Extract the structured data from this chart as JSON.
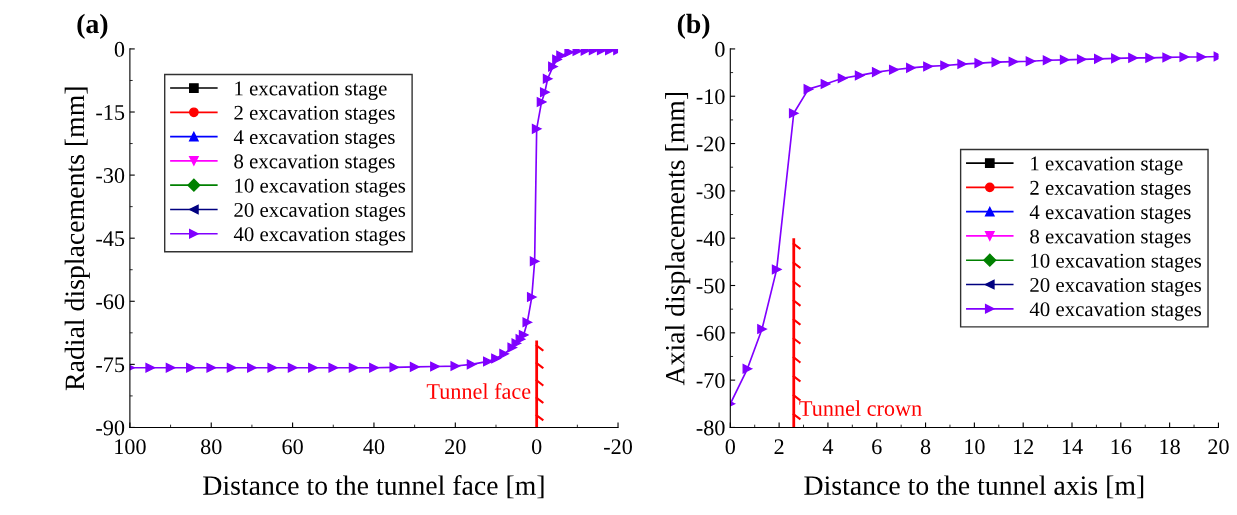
{
  "chart_data": [
    {
      "type": "line",
      "title": "(a)",
      "xlabel": "Distance to the tunnel face [m]",
      "ylabel": "Radial displacements [mm]",
      "x": [
        100,
        95,
        90,
        85,
        80,
        75,
        70,
        65,
        60,
        55,
        50,
        45,
        40,
        35,
        30,
        25,
        20,
        16,
        12,
        10,
        8,
        6,
        5,
        4,
        3.2,
        2.3,
        1.2,
        0.5,
        0,
        -1.2,
        -2,
        -2.7,
        -4,
        -5,
        -6,
        -8,
        -10,
        -12,
        -14,
        -16,
        -18,
        -20
      ],
      "xlim": [
        100,
        -20
      ],
      "xticks": [
        100,
        80,
        60,
        40,
        20,
        0,
        -20
      ],
      "ylim": [
        -90,
        0
      ],
      "yticks": [
        -90,
        -75,
        -60,
        -45,
        -30,
        -15,
        0
      ],
      "legend": "top left",
      "grid": false,
      "line_style": "solid",
      "ref_lines": [
        {
          "axis": "x",
          "value": 0,
          "label": "Tunnel face",
          "color": "#ff0000"
        }
      ],
      "series": [
        {
          "name": "1 excavation stage",
          "color": "#000000",
          "marker": "square",
          "values": [
            null,
            null,
            null,
            null,
            null,
            null,
            null,
            null,
            null,
            null,
            null,
            null,
            null,
            null,
            null,
            null,
            null,
            null,
            null,
            null,
            null,
            null,
            null,
            null,
            null,
            null,
            null,
            null,
            null,
            null,
            null,
            null,
            null,
            null,
            null,
            null,
            null,
            null,
            null,
            null,
            null,
            null
          ]
        },
        {
          "name": "2 excavation stages",
          "color": "#ff0000",
          "marker": "circle",
          "values": [
            null,
            null,
            null,
            null,
            null,
            null,
            null,
            null,
            null,
            null,
            null,
            null,
            null,
            null,
            null,
            null,
            null,
            null,
            null,
            null,
            null,
            null,
            null,
            null,
            null,
            null,
            null,
            null,
            null,
            null,
            null,
            null,
            null,
            null,
            null,
            null,
            null,
            null,
            null,
            null,
            null,
            null
          ]
        },
        {
          "name": "4 excavation stages",
          "color": "#0000ff",
          "marker": "triangle",
          "values": [
            null,
            null,
            null,
            null,
            null,
            null,
            null,
            null,
            null,
            null,
            null,
            null,
            null,
            null,
            null,
            null,
            null,
            null,
            null,
            null,
            null,
            null,
            null,
            null,
            null,
            null,
            null,
            null,
            null,
            null,
            null,
            null,
            null,
            null,
            null,
            null,
            null,
            null,
            null,
            null,
            null,
            null
          ]
        },
        {
          "name": "8 excavation stages",
          "color": "#ff00ff",
          "marker": "triangle_down",
          "values": [
            null,
            null,
            null,
            null,
            null,
            null,
            null,
            null,
            null,
            null,
            null,
            null,
            null,
            null,
            null,
            null,
            null,
            null,
            null,
            null,
            null,
            null,
            null,
            null,
            null,
            null,
            null,
            null,
            null,
            null,
            null,
            null,
            null,
            null,
            null,
            null,
            null,
            null,
            null,
            null,
            null,
            null
          ]
        },
        {
          "name": "10 excavation stages",
          "color": "#008000",
          "marker": "diamond",
          "values": [
            null,
            null,
            null,
            null,
            null,
            null,
            null,
            null,
            null,
            null,
            null,
            null,
            null,
            null,
            null,
            null,
            null,
            null,
            null,
            null,
            null,
            null,
            null,
            null,
            null,
            null,
            null,
            null,
            null,
            null,
            null,
            null,
            null,
            null,
            null,
            null,
            null,
            null,
            null,
            null,
            null,
            null
          ]
        },
        {
          "name": "20 excavation stages",
          "color": "#000080",
          "marker": "triangle_left",
          "values": [
            null,
            null,
            null,
            null,
            null,
            null,
            null,
            null,
            null,
            null,
            null,
            null,
            null,
            null,
            null,
            null,
            null,
            null,
            null,
            null,
            null,
            null,
            null,
            null,
            null,
            null,
            null,
            null,
            null,
            null,
            null,
            null,
            null,
            null,
            null,
            null,
            null,
            null,
            null,
            null,
            null,
            null
          ]
        },
        {
          "name": "40 excavation stages",
          "color": "#8000ff",
          "marker": "triangle_right",
          "values": [
            -75.8,
            -75.8,
            -75.8,
            -75.8,
            -75.8,
            -75.8,
            -75.8,
            -75.8,
            -75.8,
            -75.8,
            -75.8,
            -75.8,
            -75.8,
            -75.7,
            -75.6,
            -75.5,
            -75.4,
            -75,
            -74.3,
            -73.6,
            -72.5,
            -71,
            -70,
            -69,
            -68,
            -65,
            -59,
            -50.5,
            -19,
            -12.6,
            -10.3,
            -7.1,
            -4.2,
            -2.5,
            -1.6,
            -0.8,
            -0.5,
            -0.4,
            -0.3,
            -0.3,
            -0.3,
            -0.3
          ]
        }
      ]
    },
    {
      "type": "line",
      "title": "(b)",
      "xlabel": "Distance to the tunnel axis [m]",
      "ylabel": "Axial displacements [mm]",
      "x": [
        0,
        0.7,
        1.3,
        1.9,
        2.6,
        3.2,
        3.9,
        4.6,
        5.3,
        6,
        6.7,
        7.4,
        8.1,
        8.8,
        9.5,
        10.2,
        10.9,
        11.6,
        12.3,
        13,
        13.7,
        14.4,
        15.1,
        15.8,
        16.5,
        17.2,
        17.9,
        18.6,
        19.3,
        20
      ],
      "xlim": [
        0,
        20
      ],
      "xticks": [
        0,
        2,
        4,
        6,
        8,
        10,
        12,
        14,
        16,
        18,
        20
      ],
      "ylim": [
        -80,
        0
      ],
      "yticks": [
        -80,
        -70,
        -60,
        -50,
        -40,
        -30,
        -20,
        -10,
        0
      ],
      "legend": "right",
      "grid": false,
      "line_style": "solid",
      "ref_lines": [
        {
          "axis": "x",
          "value": 2.6,
          "label": "Tunnel crown",
          "color": "#ff0000"
        }
      ],
      "series": [
        {
          "name": "1 excavation stage",
          "color": "#000000",
          "marker": "square",
          "values": [
            null,
            null,
            null,
            null,
            null,
            null,
            null,
            null,
            null,
            null,
            null,
            null,
            null,
            null,
            null,
            null,
            null,
            null,
            null,
            null,
            null,
            null,
            null,
            null,
            null,
            null,
            null,
            null,
            null,
            null
          ]
        },
        {
          "name": "2 excavation stages",
          "color": "#ff0000",
          "marker": "circle",
          "values": [
            null,
            null,
            null,
            null,
            null,
            null,
            null,
            null,
            null,
            null,
            null,
            null,
            null,
            null,
            null,
            null,
            null,
            null,
            null,
            null,
            null,
            null,
            null,
            null,
            null,
            null,
            null,
            null,
            null,
            null
          ]
        },
        {
          "name": "4 excavation stages",
          "color": "#0000ff",
          "marker": "triangle",
          "values": [
            null,
            null,
            null,
            null,
            null,
            null,
            null,
            null,
            null,
            null,
            null,
            null,
            null,
            null,
            null,
            null,
            null,
            null,
            null,
            null,
            null,
            null,
            null,
            null,
            null,
            null,
            null,
            null,
            null,
            null
          ]
        },
        {
          "name": "8 excavation stages",
          "color": "#ff00ff",
          "marker": "triangle_down",
          "values": [
            null,
            null,
            null,
            null,
            null,
            null,
            null,
            null,
            null,
            null,
            null,
            null,
            null,
            null,
            null,
            null,
            null,
            null,
            null,
            null,
            null,
            null,
            null,
            null,
            null,
            null,
            null,
            null,
            null,
            null
          ]
        },
        {
          "name": "10 excavation stages",
          "color": "#008000",
          "marker": "diamond",
          "values": [
            null,
            null,
            null,
            null,
            null,
            null,
            null,
            null,
            null,
            null,
            null,
            null,
            null,
            null,
            null,
            null,
            null,
            null,
            null,
            null,
            null,
            null,
            null,
            null,
            null,
            null,
            null,
            null,
            null,
            null
          ]
        },
        {
          "name": "20 excavation stages",
          "color": "#000080",
          "marker": "triangle_left",
          "values": [
            null,
            null,
            null,
            null,
            null,
            null,
            null,
            null,
            null,
            null,
            null,
            null,
            null,
            null,
            null,
            null,
            null,
            null,
            null,
            null,
            null,
            null,
            null,
            null,
            null,
            null,
            null,
            null,
            null,
            null
          ]
        },
        {
          "name": "40 excavation stages",
          "color": "#8000ff",
          "marker": "triangle_right",
          "values": [
            -75,
            -67.6,
            -59.2,
            -46.6,
            -13.6,
            -8.5,
            -7.4,
            -6.2,
            -5.6,
            -4.9,
            -4.4,
            -4,
            -3.7,
            -3.5,
            -3.2,
            -3,
            -2.8,
            -2.7,
            -2.6,
            -2.4,
            -2.3,
            -2.2,
            -2.1,
            -2,
            -1.9,
            -1.9,
            -1.8,
            -1.7,
            -1.7,
            -1.6
          ]
        }
      ]
    }
  ]
}
